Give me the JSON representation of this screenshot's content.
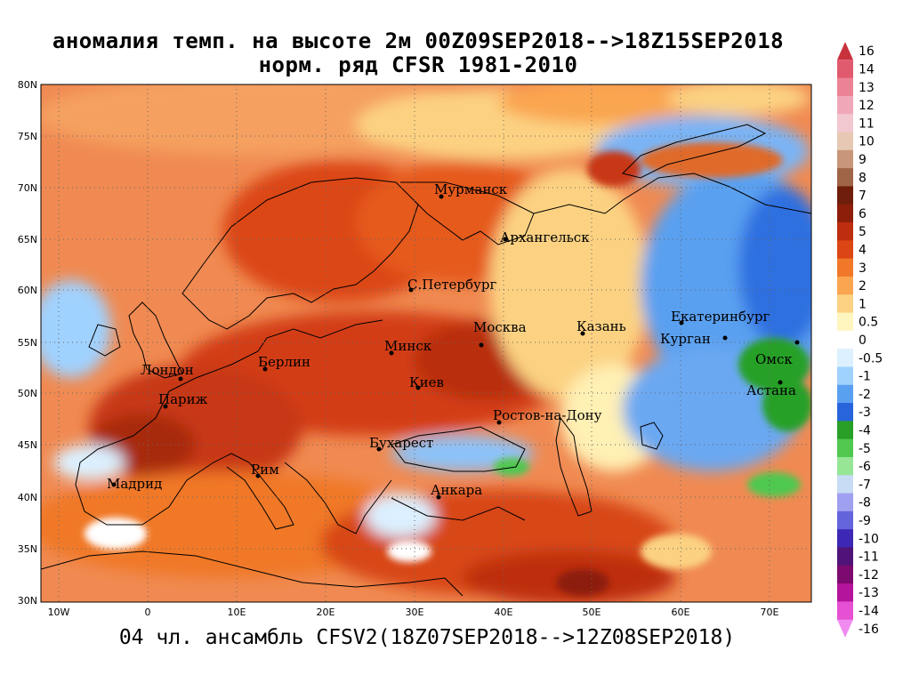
{
  "title_line1": "аномалия темп. на высоте 2м 00Z09SEP2018-->18Z15SEP2018",
  "title_line2": "норм. ряд CFSR 1981-2010",
  "footer": "04 чл. ансамбль CFSV2(18Z07SEP2018-->12Z08SEP2018)",
  "lat_labels": [
    "80N",
    "75N",
    "70N",
    "65N",
    "60N",
    "55N",
    "50N",
    "45N",
    "40N",
    "35N",
    "30N"
  ],
  "lon_labels": [
    "10W",
    "0",
    "10E",
    "20E",
    "30E",
    "40E",
    "50E",
    "60E",
    "70E"
  ],
  "cities": [
    "Мурманск",
    "Архангельск",
    "С.Петербург",
    "Москва",
    "Казань",
    "Екатеринбург",
    "Курган",
    "Омск",
    "Астана",
    "Минск",
    "Киев",
    "Берлин",
    "Лондон",
    "Париж",
    "Ростов-на-Дону",
    "Бухарест",
    "Рим",
    "Мадрид",
    "Анкара"
  ],
  "colorbar": {
    "labels": [
      "16",
      "14",
      "13",
      "12",
      "11",
      "10",
      "9",
      "8",
      "7",
      "6",
      "5",
      "4",
      "3",
      "2",
      "1",
      "0.5",
      "0",
      "-0.5",
      "-1",
      "-2",
      "-3",
      "-4",
      "-5",
      "-6",
      "-7",
      "-8",
      "-9",
      "-10",
      "-11",
      "-12",
      "-13",
      "-14",
      "-16"
    ],
    "colors": [
      "#c8323c",
      "#e05a6e",
      "#ec8296",
      "#f0a8b8",
      "#f2c8d0",
      "#e6c8b4",
      "#c89678",
      "#a06446",
      "#6e1e0a",
      "#8c1e0a",
      "#be2d0f",
      "#dc4614",
      "#f07828",
      "#faa550",
      "#fcd282",
      "#fff5be",
      "#ffffff",
      "#dcf0ff",
      "#a0d2ff",
      "#5aa0f0",
      "#2864dc",
      "#28a028",
      "#50c850",
      "#96e696",
      "#c8dcf5",
      "#a0a0f0",
      "#6464dc",
      "#3c28b4",
      "#501478",
      "#7d0a6e",
      "#b4149b",
      "#e650d2",
      "#f08cf0"
    ]
  },
  "colors": {
    "ocean_warm": "#f08a52",
    "land_warm": "#d9441a",
    "cold": "#5aa0f0",
    "neutral": "#fff5be"
  }
}
